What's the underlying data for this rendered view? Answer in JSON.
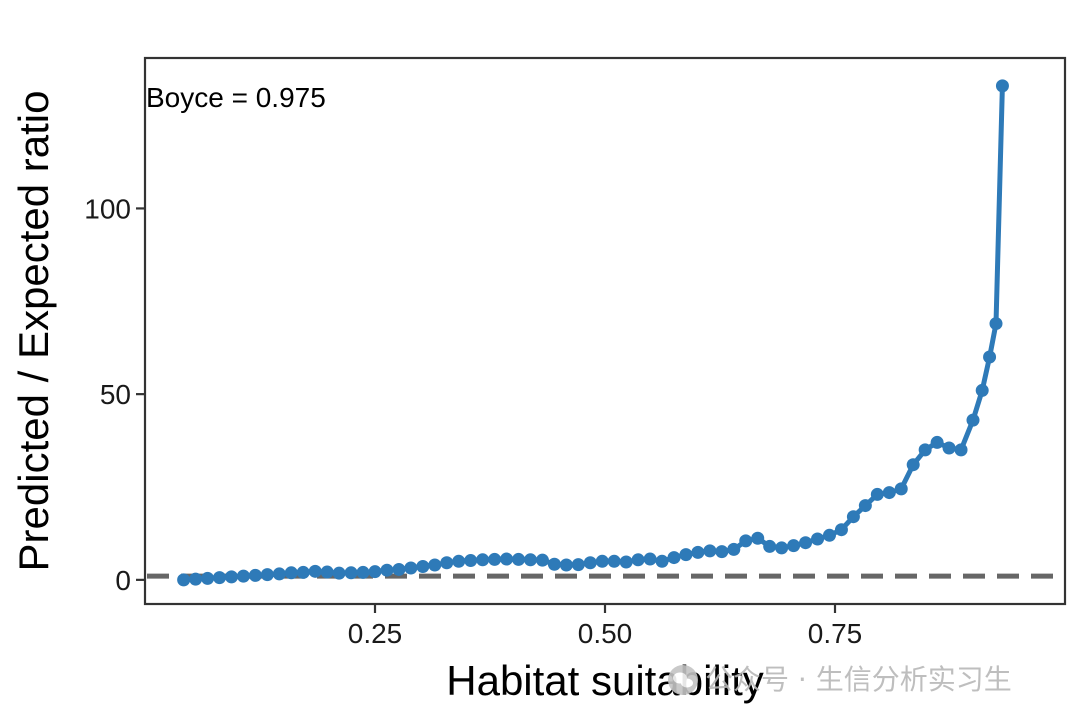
{
  "chart_data": {
    "type": "line",
    "xlabel": "Habitat suitability",
    "ylabel": "Predicted / Expected ratio",
    "xlim": [
      0.0,
      1.0
    ],
    "ylim": [
      -6.5,
      140.5
    ],
    "xticks": [
      0.25,
      0.5,
      0.75
    ],
    "xtick_labels": [
      "0.25",
      "0.50",
      "0.75"
    ],
    "yticks": [
      0,
      50,
      100
    ],
    "ytick_labels": [
      "0",
      "50",
      "100"
    ],
    "grid": false,
    "legend": "none",
    "annotation": "Boyce = 0.975",
    "reference_line": {
      "y": 1,
      "style": "dashed",
      "color": "#666666"
    },
    "series": [
      {
        "color": "#2e7ab8",
        "x": [
          0.042,
          0.055,
          0.068,
          0.081,
          0.094,
          0.107,
          0.12,
          0.133,
          0.146,
          0.159,
          0.172,
          0.185,
          0.198,
          0.211,
          0.224,
          0.237,
          0.25,
          0.263,
          0.276,
          0.289,
          0.302,
          0.315,
          0.328,
          0.341,
          0.354,
          0.367,
          0.38,
          0.393,
          0.406,
          0.419,
          0.432,
          0.445,
          0.458,
          0.471,
          0.484,
          0.497,
          0.51,
          0.523,
          0.536,
          0.549,
          0.562,
          0.575,
          0.588,
          0.601,
          0.614,
          0.627,
          0.64,
          0.653,
          0.666,
          0.679,
          0.692,
          0.705,
          0.718,
          0.731,
          0.744,
          0.757,
          0.77,
          0.783,
          0.796,
          0.809,
          0.822,
          0.835,
          0.848,
          0.861,
          0.874,
          0.887,
          0.9,
          0.91,
          0.918,
          0.925,
          0.932
        ],
        "y": [
          0,
          0.2,
          0.4,
          0.6,
          0.8,
          1.0,
          1.2,
          1.4,
          1.6,
          1.9,
          2.0,
          2.3,
          2.1,
          1.8,
          1.9,
          2.0,
          2.2,
          2.6,
          2.8,
          3.2,
          3.6,
          4.0,
          4.6,
          5.0,
          5.2,
          5.4,
          5.5,
          5.6,
          5.5,
          5.4,
          5.3,
          4.2,
          4.0,
          4.1,
          4.6,
          5.0,
          5.0,
          4.8,
          5.4,
          5.6,
          5.0,
          6.0,
          6.8,
          7.4,
          7.8,
          7.6,
          8.2,
          10.5,
          11.2,
          9.0,
          8.6,
          9.2,
          10.0,
          11.0,
          12.0,
          13.5,
          17.0,
          20.0,
          23.0,
          23.5,
          24.5,
          31.0,
          35.0,
          37.0,
          35.5,
          35.0,
          43.0,
          51.0,
          60.0,
          69.0,
          133.0
        ]
      }
    ]
  },
  "watermark": {
    "text": "公众号 · 生信分析实习生",
    "icon": "wechat-icon"
  }
}
